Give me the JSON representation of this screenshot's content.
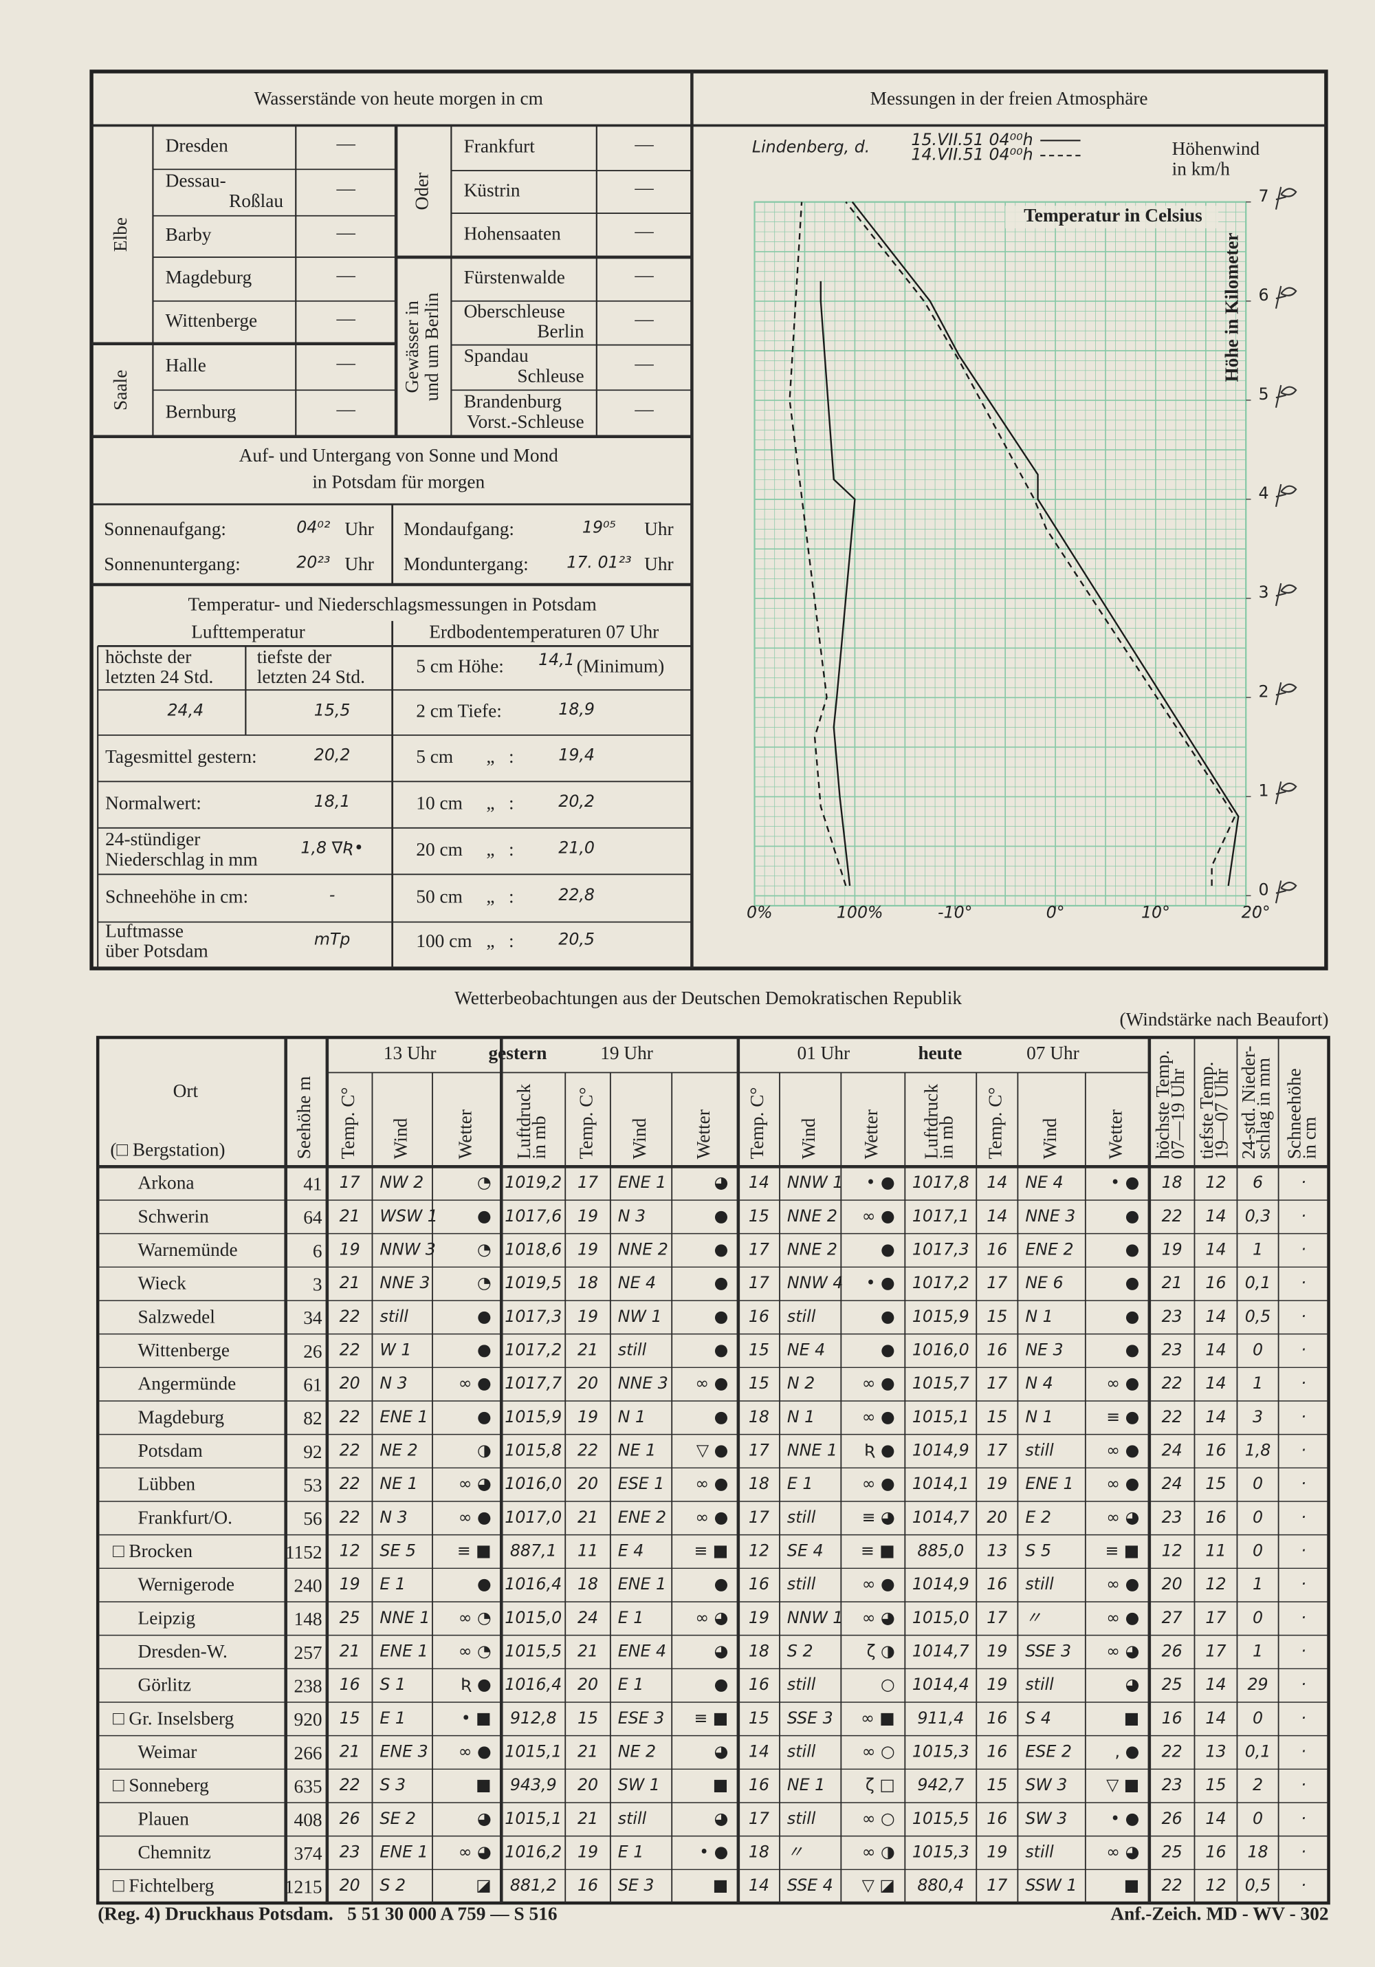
{
  "water_levels": {
    "title": "Wasserstände von heute morgen in cm",
    "groups": [
      {
        "label": [
          "Elbe"
        ],
        "stations": [
          {
            "name": [
              "Dresden"
            ],
            "level": "—"
          },
          {
            "name": [
              "Dessau-",
              "Roßlau"
            ],
            "level": "—"
          },
          {
            "name": [
              "Barby"
            ],
            "level": "—"
          },
          {
            "name": [
              "Magdeburg"
            ],
            "level": "—"
          },
          {
            "name": [
              "Wittenberge"
            ],
            "level": "—"
          }
        ]
      },
      {
        "label": [
          "Saale"
        ],
        "stations": [
          {
            "name": [
              "Halle"
            ],
            "level": "—"
          },
          {
            "name": [
              "Bernburg"
            ],
            "level": "—"
          }
        ]
      },
      {
        "label": [
          "Oder"
        ],
        "stations": [
          {
            "name": [
              "Frankfurt"
            ],
            "level": "—"
          },
          {
            "name": [
              "Küstrin"
            ],
            "level": "—"
          },
          {
            "name": [
              "Hohensaaten"
            ],
            "level": "—"
          }
        ]
      },
      {
        "label": [
          "Gewässer in",
          "und um Berlin"
        ],
        "stations": [
          {
            "name": [
              "Fürstenwalde"
            ],
            "level": "—"
          },
          {
            "name": [
              "Oberschleuse",
              "Berlin"
            ],
            "level": "—"
          },
          {
            "name": [
              "Spandau",
              "Schleuse"
            ],
            "level": "—"
          },
          {
            "name": [
              "Brandenburg",
              "Vorst.-Schleuse"
            ],
            "level": "—"
          }
        ]
      }
    ]
  },
  "sun_moon": {
    "title": [
      "Auf- und Untergang von Sonne und Mond",
      "in Potsdam für morgen"
    ],
    "entries": [
      {
        "label": "Sonnenaufgang:",
        "time": "04⁰²",
        "unit": "Uhr"
      },
      {
        "label": "Sonnenuntergang:",
        "time": "20²³",
        "unit": "Uhr"
      },
      {
        "label": "Mondaufgang:",
        "time": "19⁰⁵",
        "unit": "Uhr"
      },
      {
        "label": "Monduntergang:",
        "time": "17. 01²³",
        "unit": "Uhr"
      }
    ]
  },
  "potsdam": {
    "title": "Temperatur- und Niederschlagsmessungen in Potsdam",
    "air_heading": "Lufttemperatur",
    "soil_heading": "Erdbodentemperaturen 07 Uhr",
    "max_label": [
      "höchste der",
      "letzten 24 Std."
    ],
    "max_value": "24,4",
    "min_label": [
      "tiefste der",
      "letzten 24 Std."
    ],
    "min_value": "15,5",
    "rows": [
      {
        "label": [
          "Tagesmittel gestern:"
        ],
        "value": "20,2"
      },
      {
        "label": [
          "Normalwert:"
        ],
        "value": "18,1"
      },
      {
        "label": [
          "24-stündiger",
          "Niederschlag in mm"
        ],
        "value": "1,8 ∇Ʀ•"
      },
      {
        "label": [
          "Schneehöhe in cm:"
        ],
        "value": "-"
      },
      {
        "label": [
          "Luftmasse",
          "über Potsdam"
        ],
        "value": "mTp"
      }
    ],
    "soil": [
      {
        "depth": "5 cm Höhe:",
        "value": "14,1",
        "note": "(Minimum)"
      },
      {
        "depth": "2 cm Tiefe:",
        "value": "18,9"
      },
      {
        "depth": "5 cm",
        "ditto": "„   :",
        "value": "19,4"
      },
      {
        "depth": "10 cm",
        "ditto": "„   :",
        "value": "20,2"
      },
      {
        "depth": "20 cm",
        "ditto": "„   :",
        "value": "21,0"
      },
      {
        "depth": "50 cm",
        "ditto": "„   :",
        "value": "22,8"
      },
      {
        "depth": "100 cm",
        "ditto": "„   :",
        "value": "20,5"
      }
    ]
  },
  "atmosphere": {
    "title": "Messungen in der freien Atmosphäre",
    "station": "Lindenberg, d.",
    "legend": [
      {
        "label": "15.VII.51 04⁰⁰h",
        "dashed": false
      },
      {
        "label": "14.VII.51 04⁰⁰h",
        "dashed": true
      }
    ],
    "wind_label": [
      "Höhenwind",
      "in km/h"
    ],
    "temp_label": "Temperatur in Celsius",
    "height_label": "Höhe in Kilometer",
    "grid_color": "#86c8a6",
    "ylim": [
      0,
      7
    ],
    "yticks": [
      0,
      1,
      2,
      3,
      4,
      5,
      6,
      7
    ],
    "xlim": [
      -30,
      20
    ],
    "xticks": [
      {
        "value": -10,
        "label": "-10°"
      },
      {
        "value": 0,
        "label": "0°"
      },
      {
        "value": 10,
        "label": "10°"
      },
      {
        "value": 20,
        "label": "20°"
      }
    ],
    "humidity_ticks": [
      {
        "value": 0,
        "label": "0%"
      },
      {
        "value": 100,
        "label": "100%"
      }
    ],
    "temperature_series": [
      {
        "dashed": false,
        "height": [
          0.1,
          0.8,
          4.0,
          4.25,
          5.45,
          6.0,
          7.0
        ],
        "values": [
          17.25,
          18.25,
          -1.75,
          -1.75,
          -9.6,
          -12.5,
          -20.25
        ]
      },
      {
        "dashed": true,
        "height": [
          0.1,
          0.3,
          0.8,
          3.7,
          4.0,
          5.4,
          6.0,
          7.0
        ],
        "values": [
          15.6,
          15.6,
          17.9,
          -0.9,
          -2.1,
          -9.6,
          -13.1,
          -20.9
        ]
      }
    ],
    "humidity_series": [
      {
        "dashed": false,
        "height": [
          0.1,
          1.0,
          1.7,
          2.0,
          4.0,
          4.2,
          6.0,
          6.2
        ],
        "values": [
          95,
          85,
          79,
          82,
          100,
          79,
          66,
          66
        ]
      },
      {
        "dashed": true,
        "height": [
          0.1,
          0.9,
          1.6,
          2.0,
          5.0,
          7.0
        ],
        "values": [
          91,
          66,
          60,
          72,
          35,
          47
        ]
      }
    ]
  },
  "observations": {
    "title": "Wetterbeobachtungen aus der Deutschen Demokratischen Republik",
    "note": "(Windstärke nach Beaufort)",
    "place_header": "Ort",
    "mountain_note": "(□ Bergstation)",
    "elevation_header": "Seehöhe m",
    "group_labels": [
      "13 Uhr",
      "gestern",
      "19 Uhr",
      "01 Uhr",
      "heute",
      "07 Uhr"
    ],
    "columns": [
      [
        "Temp. C°"
      ],
      [
        "Wind"
      ],
      [
        "Wetter"
      ],
      [
        "Luftdruck",
        "in mb"
      ],
      [
        "Temp. C°"
      ],
      [
        "Wind"
      ],
      [
        "Wetter"
      ],
      [
        "Temp. C°"
      ],
      [
        "Wind"
      ],
      [
        "Wetter"
      ],
      [
        "Luftdruck",
        "in mb"
      ],
      [
        "Temp. C°"
      ],
      [
        "Wind"
      ],
      [
        "Wetter"
      ],
      [
        "höchste Temp.",
        "07—19 Uhr"
      ],
      [
        "tiefste Temp.",
        "19—07 Uhr"
      ],
      [
        "24-std. Nieder-",
        "schlag in mm"
      ],
      [
        "Schneehöhe",
        "in cm"
      ]
    ],
    "rows": [
      [
        "Arkona",
        "41",
        "17",
        "NW 2",
        "◔",
        "1019,2",
        "17",
        "ENE 1",
        "◕",
        "14",
        "NNW 1",
        "• ●",
        "1017,8",
        "14",
        "NE 4",
        "• ●",
        "18",
        "12",
        "6",
        "·"
      ],
      [
        "Schwerin",
        "64",
        "21",
        "WSW 1",
        "●",
        "1017,6",
        "19",
        "N 3",
        "●",
        "15",
        "NNE 2",
        "∞ ●",
        "1017,1",
        "14",
        "NNE 3",
        "●",
        "22",
        "14",
        "0,3",
        "·"
      ],
      [
        "Warnemünde",
        "6",
        "19",
        "NNW 3",
        "◔",
        "1018,6",
        "19",
        "NNE 2",
        "●",
        "17",
        "NNE 2",
        "●",
        "1017,3",
        "16",
        "ENE 2",
        "●",
        "19",
        "14",
        "1",
        "·"
      ],
      [
        "Wieck",
        "3",
        "21",
        "NNE 3",
        "◔",
        "1019,5",
        "18",
        "NE 4",
        "●",
        "17",
        "NNW 4",
        "• ●",
        "1017,2",
        "17",
        "NE 6",
        "●",
        "21",
        "16",
        "0,1",
        "·"
      ],
      [
        "Salzwedel",
        "34",
        "22",
        "still",
        "●",
        "1017,3",
        "19",
        "NW 1",
        "●",
        "16",
        "still",
        "●",
        "1015,9",
        "15",
        "N 1",
        "●",
        "23",
        "14",
        "0,5",
        "·"
      ],
      [
        "Wittenberge",
        "26",
        "22",
        "W 1",
        "●",
        "1017,2",
        "21",
        "still",
        "●",
        "15",
        "NE 4",
        "●",
        "1016,0",
        "16",
        "NE 3",
        "●",
        "23",
        "14",
        "0",
        "·"
      ],
      [
        "Angermünde",
        "61",
        "20",
        "N 3",
        "∞ ●",
        "1017,7",
        "20",
        "NNE 3",
        "∞ ●",
        "15",
        "N 2",
        "∞ ●",
        "1015,7",
        "17",
        "N 4",
        "∞ ●",
        "22",
        "14",
        "1",
        "·"
      ],
      [
        "Magdeburg",
        "82",
        "22",
        "ENE 1",
        "●",
        "1015,9",
        "19",
        "N 1",
        "●",
        "18",
        "N 1",
        "∞ ●",
        "1015,1",
        "15",
        "N 1",
        "≡ ●",
        "22",
        "14",
        "3",
        "·"
      ],
      [
        "Potsdam",
        "92",
        "22",
        "NE 2",
        "◑",
        "1015,8",
        "22",
        "NE 1",
        "▽ ●",
        "17",
        "NNE 1",
        "Ʀ ●",
        "1014,9",
        "17",
        "still",
        "∞ ●",
        "24",
        "16",
        "1,8",
        "·"
      ],
      [
        "Lübben",
        "53",
        "22",
        "NE 1",
        "∞ ◕",
        "1016,0",
        "20",
        "ESE 1",
        "∞ ●",
        "18",
        "E 1",
        "∞ ●",
        "1014,1",
        "19",
        "ENE 1",
        "∞ ●",
        "24",
        "15",
        "0",
        "·"
      ],
      [
        "Frankfurt/O.",
        "56",
        "22",
        "N 3",
        "∞ ●",
        "1017,0",
        "21",
        "ENE 2",
        "∞ ●",
        "17",
        "still",
        "≡ ◕",
        "1014,7",
        "20",
        "E 2",
        "∞ ◕",
        "23",
        "16",
        "0",
        "·"
      ],
      [
        "□ Brocken",
        "1152",
        "12",
        "SE 5",
        "≡ ■",
        "887,1",
        "11",
        "E 4",
        "≡ ■",
        "12",
        "SE 4",
        "≡ ■",
        "885,0",
        "13",
        "S 5",
        "≡ ■",
        "12",
        "11",
        "0",
        "·"
      ],
      [
        "Wernigerode",
        "240",
        "19",
        "E 1",
        "●",
        "1016,4",
        "18",
        "ENE 1",
        "●",
        "16",
        "still",
        "∞ ●",
        "1014,9",
        "16",
        "still",
        "∞ ●",
        "20",
        "12",
        "1",
        "·"
      ],
      [
        "Leipzig",
        "148",
        "25",
        "NNE 1",
        "∞ ◔",
        "1015,0",
        "24",
        "E 1",
        "∞ ◕",
        "19",
        "NNW 1",
        "∞ ◕",
        "1015,0",
        "17",
        "〃",
        "∞ ●",
        "27",
        "17",
        "0",
        "·"
      ],
      [
        "Dresden-W.",
        "257",
        "21",
        "ENE 1",
        "∞ ◔",
        "1015,5",
        "21",
        "ENE 4",
        "◕",
        "18",
        "S 2",
        "ζ ◑",
        "1014,7",
        "19",
        "SSE 3",
        "∞ ◕",
        "26",
        "17",
        "1",
        "·"
      ],
      [
        "Görlitz",
        "238",
        "16",
        "S 1",
        "Ʀ ●",
        "1016,4",
        "20",
        "E 1",
        "●",
        "16",
        "still",
        "○",
        "1014,4",
        "19",
        "still",
        "◕",
        "25",
        "14",
        "29",
        "·"
      ],
      [
        "□ Gr. Inselsberg",
        "920",
        "15",
        "E 1",
        "• ■",
        "912,8",
        "15",
        "ESE 3",
        "≡ ■",
        "15",
        "SSE 3",
        "∞ ■",
        "911,4",
        "16",
        "S 4",
        "■",
        "16",
        "14",
        "0",
        "·"
      ],
      [
        "Weimar",
        "266",
        "21",
        "ENE 3",
        "∞ ●",
        "1015,1",
        "21",
        "NE 2",
        "◕",
        "14",
        "still",
        "∞ ○",
        "1015,3",
        "16",
        "ESE 2",
        ", ●",
        "22",
        "13",
        "0,1",
        "·"
      ],
      [
        "□ Sonneberg",
        "635",
        "22",
        "S 3",
        "■",
        "943,9",
        "20",
        "SW 1",
        "■",
        "16",
        "NE 1",
        "ζ □",
        "942,7",
        "15",
        "SW 3",
        "▽ ■",
        "23",
        "15",
        "2",
        "·"
      ],
      [
        "Plauen",
        "408",
        "26",
        "SE 2",
        "◕",
        "1015,1",
        "21",
        "still",
        "◕",
        "17",
        "still",
        "∞ ○",
        "1015,5",
        "16",
        "SW 3",
        "• ●",
        "26",
        "14",
        "0",
        "·"
      ],
      [
        "Chemnitz",
        "374",
        "23",
        "ENE 1",
        "∞ ◕",
        "1016,2",
        "19",
        "E 1",
        "• ●",
        "18",
        "〃",
        "∞ ◑",
        "1015,3",
        "19",
        "still",
        "∞ ◕",
        "25",
        "16",
        "18",
        "·"
      ],
      [
        "□ Fichtelberg",
        "1215",
        "20",
        "S 2",
        "◪",
        "881,2",
        "16",
        "SE 3",
        "■",
        "14",
        "SSE 4",
        "▽ ◪",
        "880,4",
        "17",
        "SSW 1",
        "■",
        "22",
        "12",
        "0,5",
        "·"
      ]
    ]
  },
  "footer": {
    "left": "(Reg. 4) Druckhaus Potsdam.   5 51 30 000 A 759 — S 516",
    "right": "Anf.-Zeich. MD - WV - 302"
  }
}
